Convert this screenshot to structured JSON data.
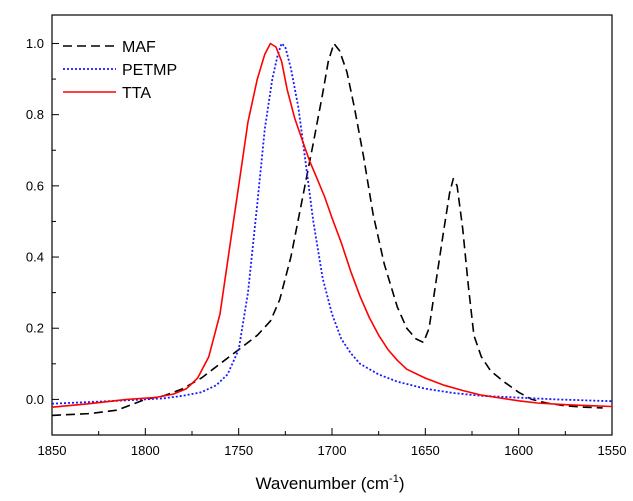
{
  "chart_data": {
    "type": "line",
    "title": "",
    "xlabel": "Wavenumber (cm",
    "xlabel_sup": "-1",
    "xlabel_tail": ")",
    "ylabel": "",
    "xlim": [
      1850,
      1550
    ],
    "ylim": [
      -0.1,
      1.08
    ],
    "x_reversed": true,
    "x_ticks": [
      1850,
      1800,
      1750,
      1700,
      1650,
      1600,
      1550
    ],
    "x_tick_labels": [
      "1850",
      "1800",
      "1750",
      "1700",
      "1650",
      "1600",
      "1550"
    ],
    "y_ticks": [
      0.0,
      0.2,
      0.4,
      0.6,
      0.8,
      1.0
    ],
    "y_tick_labels": [
      "0.0",
      "0.2",
      "0.4",
      "0.6",
      "0.8",
      "1.0"
    ],
    "grid": false,
    "legend_position": "top-left",
    "series": [
      {
        "name": "MAF",
        "color": "#000000",
        "style": "dashed",
        "points": [
          [
            1850,
            -0.045
          ],
          [
            1830,
            -0.04
          ],
          [
            1815,
            -0.03
          ],
          [
            1800,
            0.0
          ],
          [
            1790,
            0.01
          ],
          [
            1780,
            0.03
          ],
          [
            1770,
            0.06
          ],
          [
            1760,
            0.1
          ],
          [
            1750,
            0.14
          ],
          [
            1740,
            0.18
          ],
          [
            1733,
            0.22
          ],
          [
            1728,
            0.28
          ],
          [
            1722,
            0.4
          ],
          [
            1716,
            0.56
          ],
          [
            1710,
            0.72
          ],
          [
            1705,
            0.86
          ],
          [
            1702,
            0.95
          ],
          [
            1699,
            1.0
          ],
          [
            1696,
            0.98
          ],
          [
            1692,
            0.92
          ],
          [
            1688,
            0.82
          ],
          [
            1683,
            0.68
          ],
          [
            1678,
            0.52
          ],
          [
            1672,
            0.38
          ],
          [
            1665,
            0.26
          ],
          [
            1660,
            0.2
          ],
          [
            1655,
            0.17
          ],
          [
            1651,
            0.16
          ],
          [
            1648,
            0.2
          ],
          [
            1644,
            0.34
          ],
          [
            1640,
            0.48
          ],
          [
            1637,
            0.58
          ],
          [
            1635,
            0.62
          ],
          [
            1633,
            0.6
          ],
          [
            1630,
            0.48
          ],
          [
            1627,
            0.32
          ],
          [
            1624,
            0.18
          ],
          [
            1620,
            0.12
          ],
          [
            1615,
            0.08
          ],
          [
            1608,
            0.05
          ],
          [
            1600,
            0.02
          ],
          [
            1593,
            0.0
          ],
          [
            1585,
            -0.01
          ],
          [
            1575,
            -0.018
          ],
          [
            1565,
            -0.022
          ],
          [
            1555,
            -0.024
          ]
        ]
      },
      {
        "name": "PETMP",
        "color": "#1a1aff",
        "style": "dotted",
        "points": [
          [
            1850,
            -0.012
          ],
          [
            1820,
            -0.005
          ],
          [
            1800,
            0.0
          ],
          [
            1790,
            0.003
          ],
          [
            1780,
            0.01
          ],
          [
            1770,
            0.02
          ],
          [
            1762,
            0.04
          ],
          [
            1756,
            0.07
          ],
          [
            1750,
            0.14
          ],
          [
            1745,
            0.3
          ],
          [
            1740,
            0.55
          ],
          [
            1736,
            0.76
          ],
          [
            1732,
            0.9
          ],
          [
            1729,
            0.97
          ],
          [
            1727,
            1.0
          ],
          [
            1725,
            0.99
          ],
          [
            1722,
            0.93
          ],
          [
            1718,
            0.82
          ],
          [
            1714,
            0.66
          ],
          [
            1710,
            0.5
          ],
          [
            1705,
            0.34
          ],
          [
            1700,
            0.24
          ],
          [
            1695,
            0.17
          ],
          [
            1690,
            0.13
          ],
          [
            1685,
            0.1
          ],
          [
            1675,
            0.07
          ],
          [
            1665,
            0.05
          ],
          [
            1650,
            0.03
          ],
          [
            1635,
            0.018
          ],
          [
            1620,
            0.01
          ],
          [
            1600,
            0.005
          ],
          [
            1580,
            0.0
          ],
          [
            1550,
            -0.005
          ]
        ]
      },
      {
        "name": "TTA",
        "color": "#ff0000",
        "style": "solid",
        "points": [
          [
            1850,
            -0.022
          ],
          [
            1830,
            -0.012
          ],
          [
            1810,
            0.0
          ],
          [
            1795,
            0.005
          ],
          [
            1785,
            0.015
          ],
          [
            1778,
            0.03
          ],
          [
            1772,
            0.06
          ],
          [
            1766,
            0.12
          ],
          [
            1760,
            0.24
          ],
          [
            1755,
            0.42
          ],
          [
            1750,
            0.6
          ],
          [
            1745,
            0.78
          ],
          [
            1740,
            0.9
          ],
          [
            1736,
            0.97
          ],
          [
            1733,
            1.0
          ],
          [
            1730,
            0.99
          ],
          [
            1727,
            0.95
          ],
          [
            1724,
            0.87
          ],
          [
            1720,
            0.79
          ],
          [
            1716,
            0.73
          ],
          [
            1712,
            0.67
          ],
          [
            1708,
            0.62
          ],
          [
            1704,
            0.57
          ],
          [
            1700,
            0.51
          ],
          [
            1695,
            0.44
          ],
          [
            1690,
            0.36
          ],
          [
            1685,
            0.29
          ],
          [
            1680,
            0.23
          ],
          [
            1675,
            0.18
          ],
          [
            1670,
            0.14
          ],
          [
            1665,
            0.11
          ],
          [
            1660,
            0.085
          ],
          [
            1650,
            0.06
          ],
          [
            1640,
            0.04
          ],
          [
            1630,
            0.025
          ],
          [
            1620,
            0.012
          ],
          [
            1610,
            0.004
          ],
          [
            1600,
            -0.004
          ],
          [
            1590,
            -0.01
          ],
          [
            1575,
            -0.015
          ],
          [
            1560,
            -0.018
          ],
          [
            1550,
            -0.02
          ]
        ]
      }
    ]
  }
}
